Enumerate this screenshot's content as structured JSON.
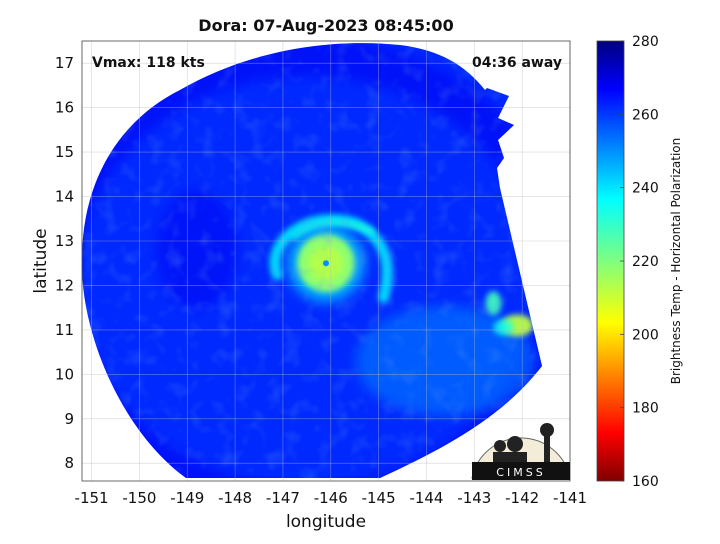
{
  "chart_data": {
    "type": "heatmap",
    "title": "Dora: 07-Aug-2023 08:45:00",
    "xlabel": "longitude",
    "ylabel": "latitude",
    "xlim": [
      -151.2,
      -141
    ],
    "ylim": [
      7.6,
      17.5
    ],
    "xticks": [
      -151,
      -150,
      -149,
      -148,
      -147,
      -146,
      -145,
      -144,
      -143,
      -142,
      -141
    ],
    "yticks": [
      8,
      9,
      10,
      11,
      12,
      13,
      14,
      15,
      16,
      17
    ],
    "grid": true,
    "annotations": {
      "left": "Vmax: 118 kts",
      "right": "04:36 away"
    },
    "colorbar": {
      "label": "Brightness Temp - Horizontal Polarization",
      "range": [
        160,
        280
      ],
      "ticks": [
        160,
        180,
        200,
        220,
        240,
        260,
        280
      ],
      "colormap": "jet"
    },
    "storm_center": {
      "lon": -146.1,
      "lat": 12.5
    },
    "swath_center": {
      "lon": -146.5,
      "lat": 12.1
    },
    "fields": {
      "background_tb": 262,
      "eye_tb": 250,
      "eyewall_tb": 218,
      "eyewall_radius_deg": 0.6,
      "outer_band_tb": 238,
      "east_convection": {
        "lon": -142.1,
        "lat": 11.1,
        "tb": 212
      },
      "east_convection_2": {
        "lon": -142.6,
        "lat": 11.6,
        "tb": 228
      }
    },
    "logo_text": "CIMSS"
  }
}
